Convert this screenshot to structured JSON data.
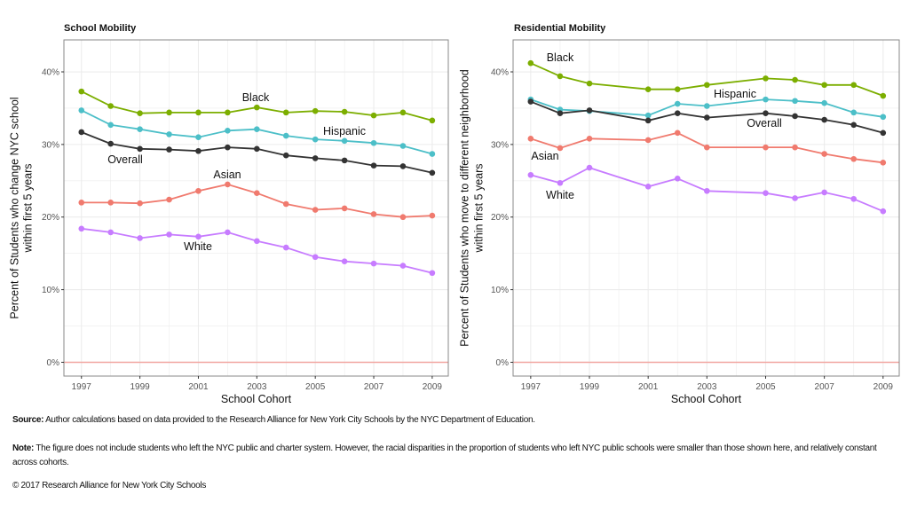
{
  "chart_data": [
    {
      "type": "line",
      "title": "School Mobility",
      "xlabel": "School Cohort",
      "ylabel": [
        "Percent of Students who change NYC school",
        "within first 5 years"
      ],
      "x_ticks": [
        "1997",
        "1999",
        "2001",
        "2003",
        "2005",
        "2007",
        "2009"
      ],
      "y_ticks": [
        "0%",
        "10%",
        "20%",
        "30%",
        "40%"
      ],
      "ylim": [
        -1.9,
        44.4
      ],
      "xlim": [
        1996.4,
        2009.55
      ],
      "grid": true,
      "reference_line": {
        "y": 0,
        "color": "#f2a7a2"
      },
      "x": [
        1997,
        1998,
        1999,
        2000,
        2001,
        2002,
        2003,
        2004,
        2005,
        2006,
        2007,
        2008,
        2009
      ],
      "series": [
        {
          "name": "Black",
          "color": "#7cae00",
          "values": [
            37.3,
            35.3,
            34.3,
            34.4,
            34.4,
            34.4,
            35.1,
            34.4,
            34.6,
            34.5,
            34.0,
            34.4,
            33.3
          ]
        },
        {
          "name": "Hispanic",
          "color": "#4cbfc8",
          "values": [
            34.7,
            32.7,
            32.1,
            31.4,
            31.0,
            31.9,
            32.1,
            31.2,
            30.7,
            30.5,
            30.2,
            29.8,
            28.7
          ]
        },
        {
          "name": "Overall",
          "color": "#333333",
          "values": [
            31.7,
            30.1,
            29.4,
            29.3,
            29.1,
            29.6,
            29.4,
            28.5,
            28.1,
            27.8,
            27.1,
            27.0,
            26.1
          ]
        },
        {
          "name": "Asian",
          "color": "#f07a6e",
          "values": [
            22.0,
            22.0,
            21.9,
            22.4,
            23.6,
            24.5,
            23.3,
            21.8,
            21.0,
            21.2,
            20.4,
            20.0,
            20.2
          ]
        },
        {
          "name": "White",
          "color": "#c77cff",
          "values": [
            18.4,
            17.9,
            17.1,
            17.6,
            17.3,
            17.9,
            16.7,
            15.8,
            14.5,
            13.9,
            13.6,
            13.3,
            12.3
          ]
        }
      ]
    },
    {
      "type": "line",
      "title": "Residential Mobility",
      "xlabel": "School Cohort",
      "ylabel": [
        "Percent of Students who move to different neighborhood",
        "within first 5 years"
      ],
      "x_ticks": [
        "1997",
        "1999",
        "2001",
        "2003",
        "2005",
        "2007",
        "2009"
      ],
      "y_ticks": [
        "0%",
        "10%",
        "20%",
        "30%",
        "40%"
      ],
      "ylim": [
        -1.9,
        44.4
      ],
      "xlim": [
        1996.4,
        2009.55
      ],
      "grid": true,
      "reference_line": {
        "y": 0,
        "color": "#f2a7a2"
      },
      "x": [
        1997,
        1998,
        1999,
        2001,
        2002,
        2003,
        2005,
        2006,
        2007,
        2008,
        2009
      ],
      "series": [
        {
          "name": "Black",
          "color": "#7cae00",
          "values": [
            41.2,
            39.4,
            38.4,
            37.6,
            37.6,
            38.2,
            39.1,
            38.9,
            38.2,
            38.2,
            36.7
          ]
        },
        {
          "name": "Hispanic",
          "color": "#4cbfc8",
          "values": [
            36.2,
            34.8,
            34.6,
            34.0,
            35.6,
            35.3,
            36.2,
            36.0,
            35.7,
            34.4,
            33.8
          ]
        },
        {
          "name": "Overall",
          "color": "#333333",
          "values": [
            35.9,
            34.3,
            34.7,
            33.3,
            34.3,
            33.7,
            34.3,
            33.9,
            33.4,
            32.7,
            31.6
          ]
        },
        {
          "name": "Asian",
          "color": "#f07a6e",
          "values": [
            30.8,
            29.5,
            30.8,
            30.6,
            31.6,
            29.6,
            29.6,
            29.6,
            28.7,
            28.0,
            27.5
          ]
        },
        {
          "name": "White",
          "color": "#c77cff",
          "values": [
            25.8,
            24.7,
            26.8,
            24.2,
            25.3,
            23.6,
            23.3,
            22.6,
            23.4,
            22.5,
            20.8
          ]
        }
      ]
    }
  ],
  "footer": {
    "source_label": "Source:",
    "source_text": " Author calculations based on data provided to the Research Alliance for New York City Schools by the NYC Department of Education.",
    "note_label": "Note:",
    "note_text": " The figure does not include students who left the NYC public and charter system. However, the racial disparities in the proportion of students who left NYC public schools were smaller than those shown here, and relatively constant across cohorts.",
    "copyright": "© 2017 Research Alliance for New York City Schools"
  }
}
